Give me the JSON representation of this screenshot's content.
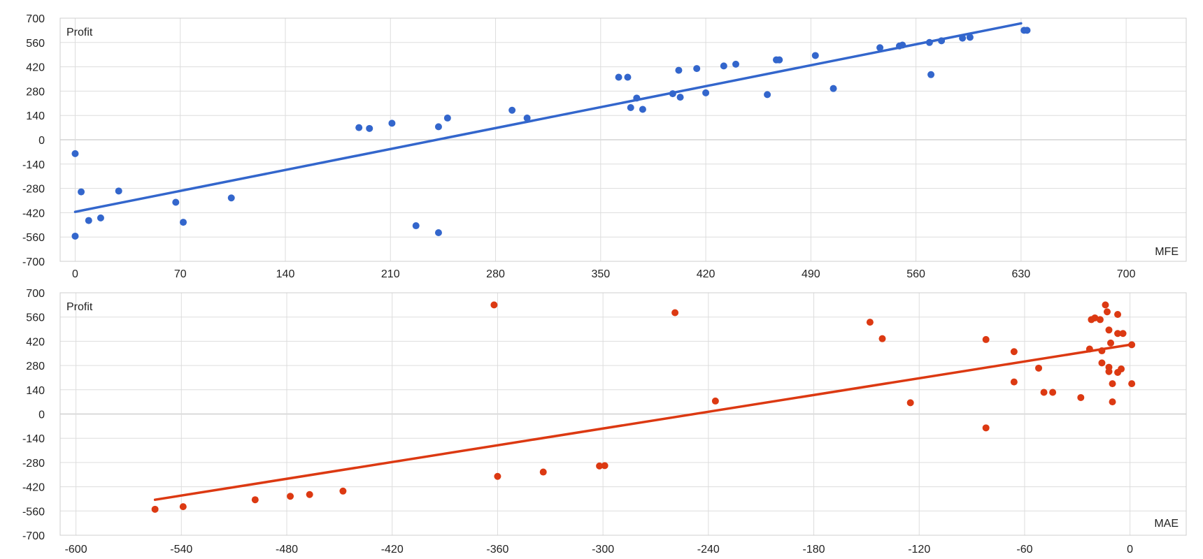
{
  "chart_data": [
    {
      "type": "scatter",
      "title": "",
      "ylabel": "Profit",
      "xlabel": "MFE",
      "xlim": [
        -10,
        740
      ],
      "ylim": [
        -700,
        700
      ],
      "x_ticks": [
        0,
        70,
        140,
        210,
        280,
        350,
        420,
        490,
        560,
        630,
        700
      ],
      "y_ticks": [
        700,
        560,
        420,
        280,
        140,
        0,
        -140,
        -280,
        -420,
        -560,
        -700
      ],
      "color": "#3366cc",
      "trendline": {
        "x": [
          0,
          630
        ],
        "y": [
          -415,
          670
        ]
      },
      "points": [
        [
          0,
          -80
        ],
        [
          0,
          -555
        ],
        [
          4,
          -300
        ],
        [
          9,
          -465
        ],
        [
          17,
          -450
        ],
        [
          29,
          -295
        ],
        [
          67,
          -360
        ],
        [
          72,
          -475
        ],
        [
          104,
          -335
        ],
        [
          189,
          70
        ],
        [
          196,
          65
        ],
        [
          211,
          95
        ],
        [
          227,
          -495
        ],
        [
          242,
          -535
        ],
        [
          242,
          75
        ],
        [
          248,
          125
        ],
        [
          291,
          170
        ],
        [
          301,
          125
        ],
        [
          362,
          360
        ],
        [
          368,
          360
        ],
        [
          370,
          185
        ],
        [
          374,
          240
        ],
        [
          378,
          175
        ],
        [
          398,
          265
        ],
        [
          402,
          400
        ],
        [
          403,
          245
        ],
        [
          414,
          410
        ],
        [
          420,
          270
        ],
        [
          432,
          425
        ],
        [
          440,
          435
        ],
        [
          461,
          260
        ],
        [
          467,
          460
        ],
        [
          469,
          460
        ],
        [
          493,
          485
        ],
        [
          505,
          295
        ],
        [
          536,
          530
        ],
        [
          549,
          540
        ],
        [
          551,
          545
        ],
        [
          569,
          560
        ],
        [
          570,
          375
        ],
        [
          577,
          570
        ],
        [
          591,
          585
        ],
        [
          596,
          590
        ],
        [
          632,
          630
        ],
        [
          634,
          630
        ]
      ]
    },
    {
      "type": "scatter",
      "title": "",
      "ylabel": "Profit",
      "xlabel": "MAE",
      "xlim": [
        -609,
        32
      ],
      "ylim": [
        -700,
        700
      ],
      "x_ticks": [
        -600,
        -540,
        -480,
        -420,
        -360,
        -300,
        -240,
        -180,
        -120,
        -60,
        0
      ],
      "y_ticks": [
        700,
        560,
        420,
        280,
        140,
        0,
        -140,
        -280,
        -420,
        -560,
        -700
      ],
      "color": "#dc3912",
      "trendline": {
        "x": [
          -555,
          0
        ],
        "y": [
          -495,
          400
        ]
      },
      "points": [
        [
          -555,
          -550
        ],
        [
          -539,
          -535
        ],
        [
          -498,
          -495
        ],
        [
          -478,
          -475
        ],
        [
          -467,
          -465
        ],
        [
          -448,
          -445
        ],
        [
          -362,
          630
        ],
        [
          -360,
          -360
        ],
        [
          -334,
          -335
        ],
        [
          -302,
          -300
        ],
        [
          -299,
          -298
        ],
        [
          -259,
          585
        ],
        [
          -236,
          75
        ],
        [
          -148,
          530
        ],
        [
          -141,
          435
        ],
        [
          -125,
          65
        ],
        [
          -82,
          430
        ],
        [
          -82,
          -80
        ],
        [
          -66,
          360
        ],
        [
          -66,
          185
        ],
        [
          -52,
          265
        ],
        [
          -49,
          125
        ],
        [
          -44,
          125
        ],
        [
          -28,
          95
        ],
        [
          -23,
          375
        ],
        [
          -22,
          545
        ],
        [
          -20,
          555
        ],
        [
          -17,
          545
        ],
        [
          -16,
          365
        ],
        [
          -16,
          295
        ],
        [
          -14,
          630
        ],
        [
          -13,
          590
        ],
        [
          -12,
          485
        ],
        [
          -12,
          270
        ],
        [
          -12,
          245
        ],
        [
          -11,
          410
        ],
        [
          -10,
          175
        ],
        [
          -10,
          70
        ],
        [
          -7,
          575
        ],
        [
          -7,
          465
        ],
        [
          -7,
          240
        ],
        [
          -5,
          260
        ],
        [
          -4,
          465
        ],
        [
          1,
          400
        ],
        [
          1,
          175
        ]
      ]
    }
  ]
}
